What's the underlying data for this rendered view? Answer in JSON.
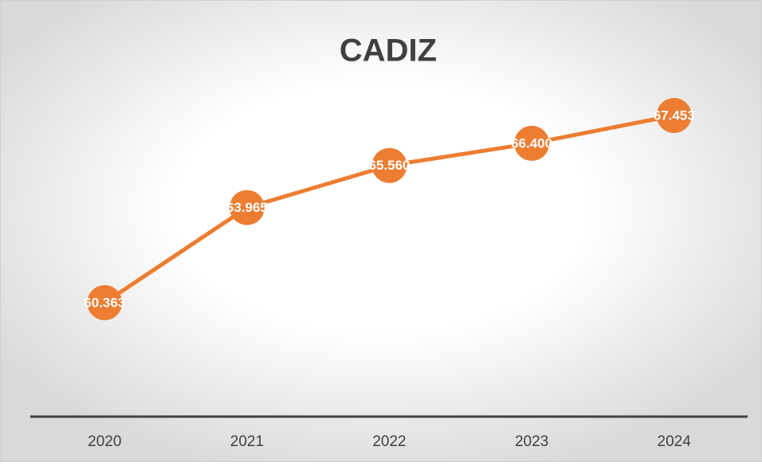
{
  "chart_data": {
    "type": "line",
    "title": "CADIZ",
    "categories": [
      "2020",
      "2021",
      "2022",
      "2023",
      "2024"
    ],
    "series": [
      {
        "name": "CADIZ",
        "color": "#ED7D31",
        "values": [
          60.363,
          63.965,
          65.56,
          66.4,
          67.453
        ],
        "value_labels": [
          "60.363",
          "63.965",
          "65.560",
          "66.400",
          "67.453"
        ]
      }
    ]
  }
}
